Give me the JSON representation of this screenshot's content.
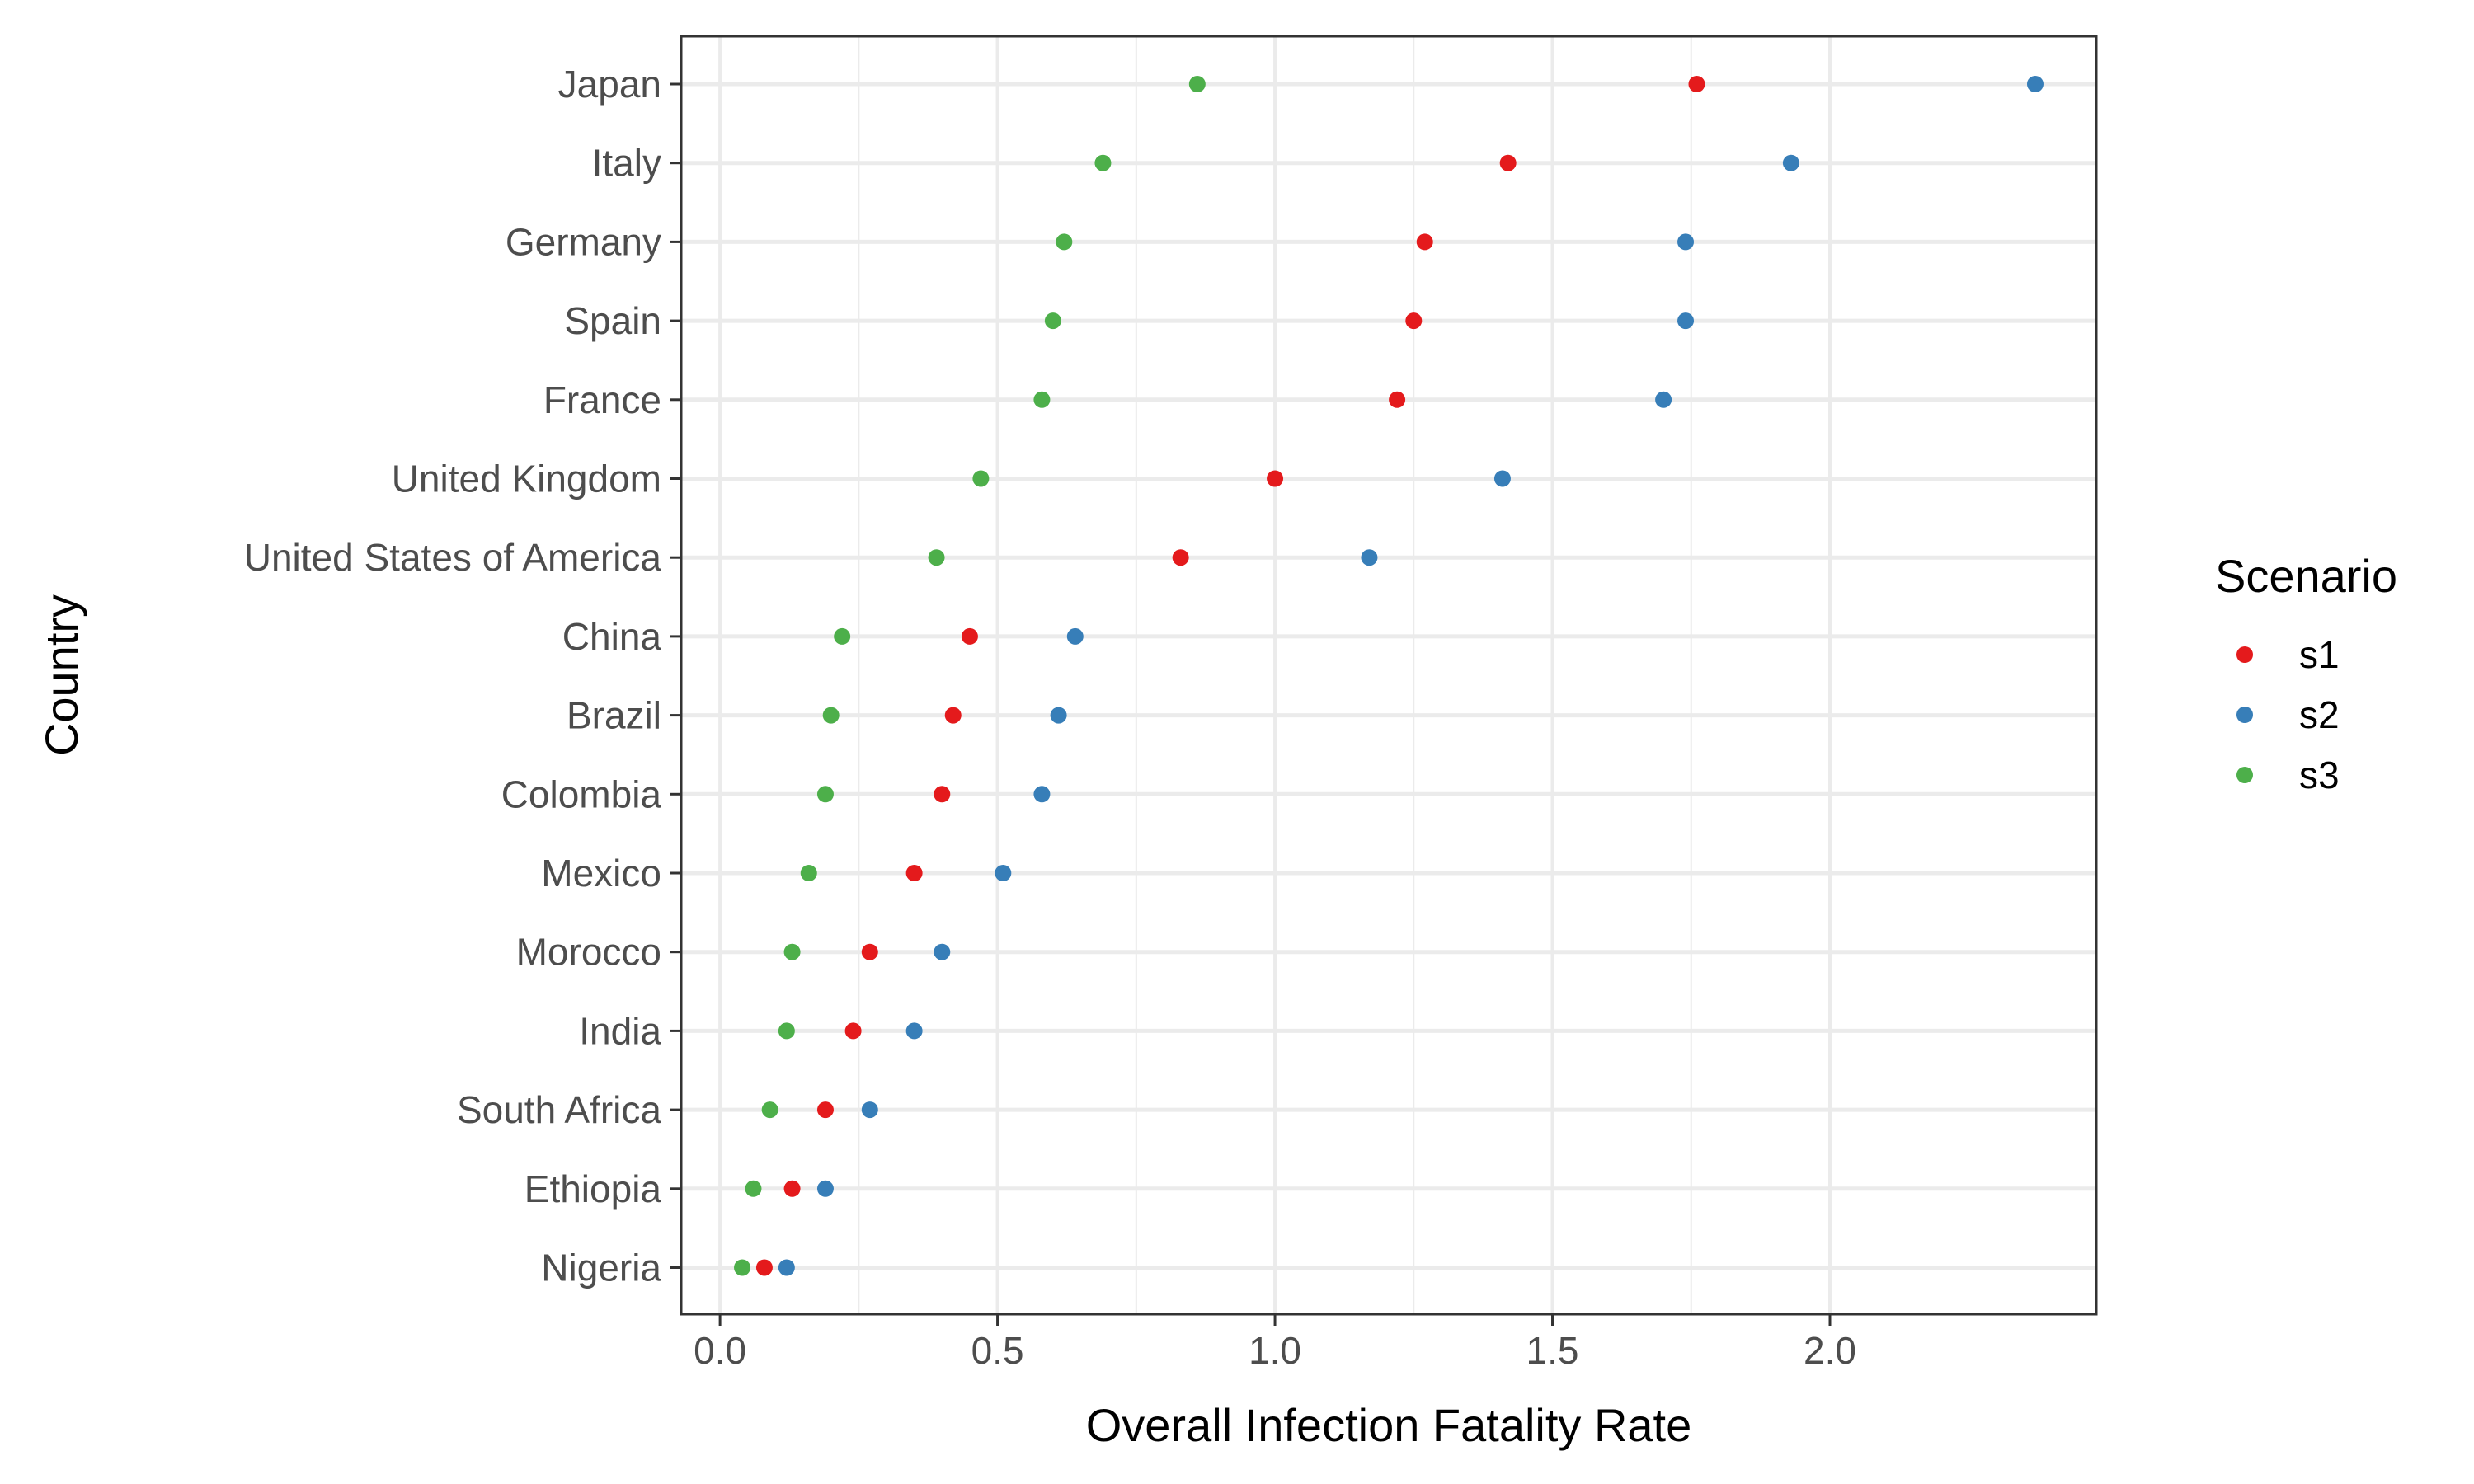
{
  "chart_data": {
    "type": "scatter",
    "title": "",
    "xlabel": "Overall Infection Fatality Rate",
    "ylabel": "Country",
    "xlim": [
      -0.07,
      2.48
    ],
    "x_ticks": [
      "0.0",
      "0.5",
      "1.0",
      "1.5",
      "2.0"
    ],
    "x_tick_values": [
      0,
      0.5,
      1.0,
      1.5,
      2.0
    ],
    "grid": true,
    "legend": {
      "title": "Scenario",
      "placement": "right"
    },
    "categories": [
      "Japan",
      "Italy",
      "Germany",
      "Spain",
      "France",
      "United Kingdom",
      "United States of America",
      "China",
      "Brazil",
      "Colombia",
      "Mexico",
      "Morocco",
      "India",
      "South Africa",
      "Ethiopia",
      "Nigeria"
    ],
    "series": [
      {
        "name": "s1",
        "color": "#e41a1c",
        "values": [
          1.76,
          1.42,
          1.27,
          1.25,
          1.22,
          1.0,
          0.83,
          0.45,
          0.42,
          0.4,
          0.35,
          0.27,
          0.24,
          0.19,
          0.13,
          0.08
        ]
      },
      {
        "name": "s2",
        "color": "#377eb8",
        "values": [
          2.37,
          1.93,
          1.74,
          1.74,
          1.7,
          1.41,
          1.17,
          0.64,
          0.61,
          0.58,
          0.51,
          0.4,
          0.35,
          0.27,
          0.19,
          0.12
        ]
      },
      {
        "name": "s3",
        "color": "#4daf4a",
        "values": [
          0.86,
          0.69,
          0.62,
          0.6,
          0.58,
          0.47,
          0.39,
          0.22,
          0.2,
          0.19,
          0.16,
          0.13,
          0.12,
          0.09,
          0.06,
          0.04
        ]
      }
    ]
  }
}
